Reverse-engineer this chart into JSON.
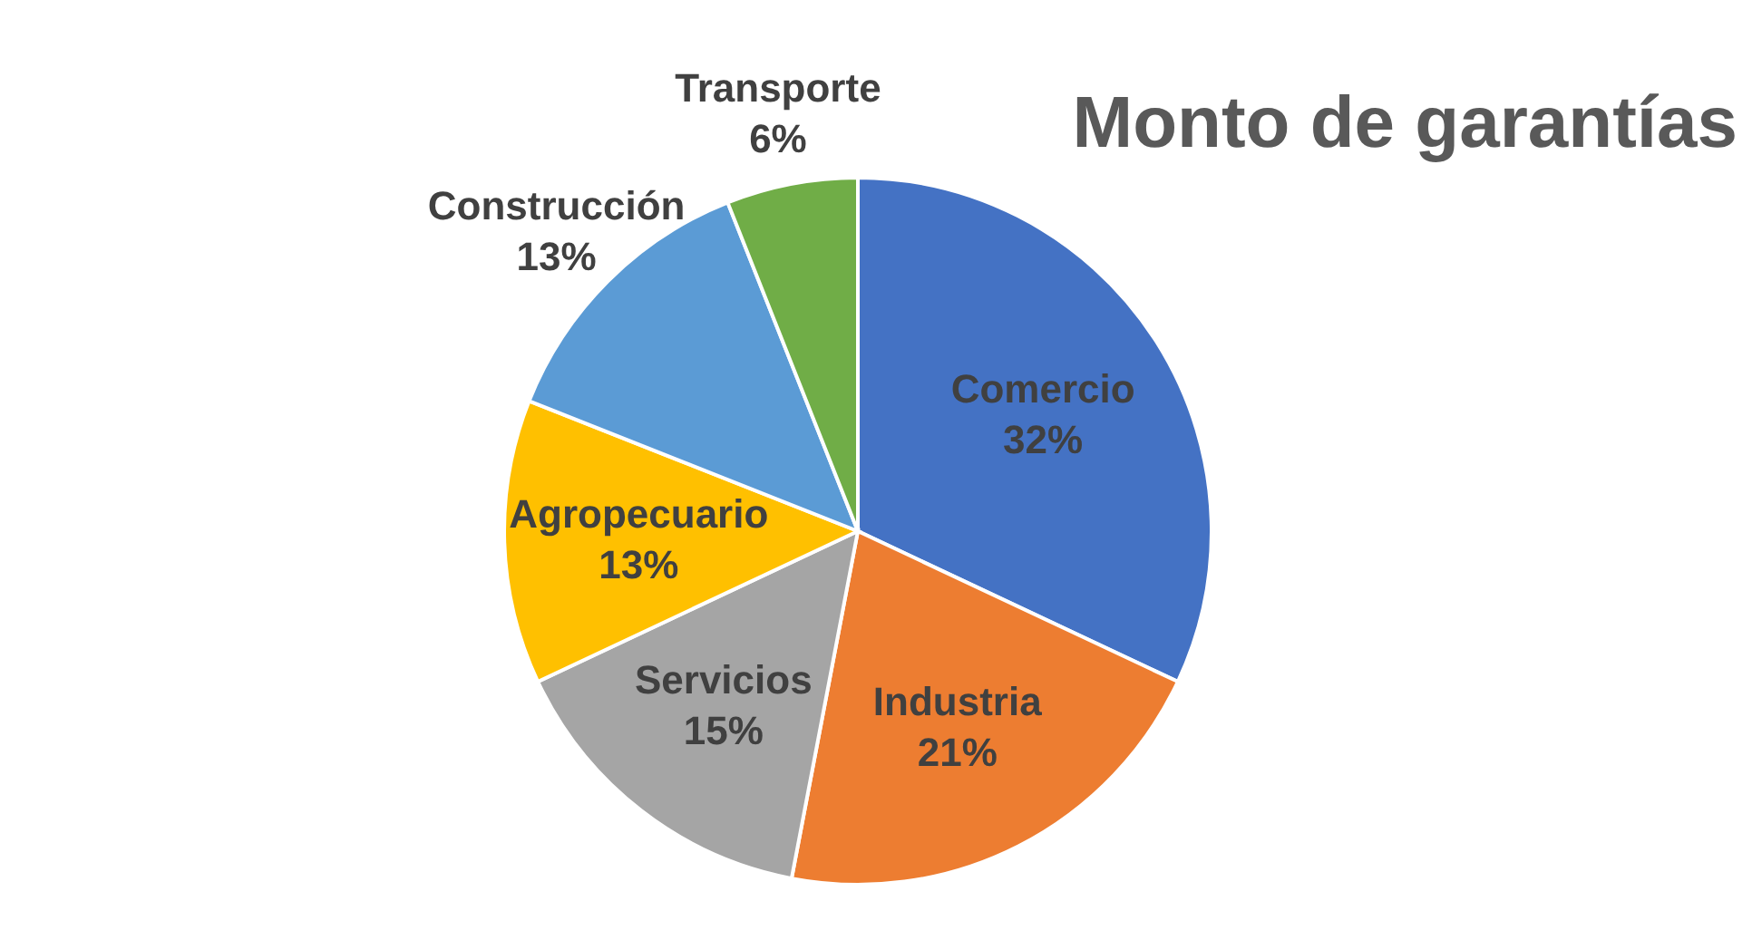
{
  "chart_data": {
    "type": "pie",
    "title": "Monto de garantías",
    "categories": [
      "Comercio",
      "Industria",
      "Servicios",
      "Agropecuario",
      "Construcción",
      "Transporte"
    ],
    "values": [
      32,
      21,
      15,
      13,
      13,
      6
    ],
    "value_labels": [
      "32%",
      "21%",
      "15%",
      "13%",
      "13%",
      "6%"
    ],
    "colors": [
      "#4472c4",
      "#ed7d31",
      "#a5a5a5",
      "#ffc000",
      "#5b9bd5",
      "#70ad47"
    ],
    "legend": false
  }
}
